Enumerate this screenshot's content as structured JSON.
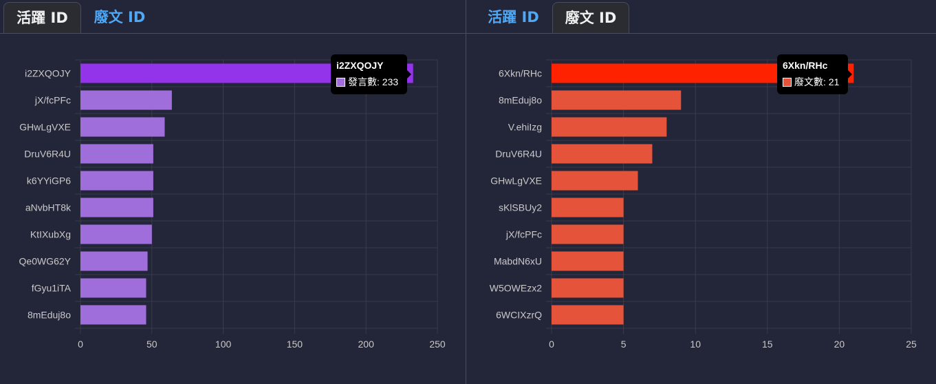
{
  "colors": {
    "background": "#232539",
    "tab_link": "#4fa8f5",
    "grid": "#3a3c4a"
  },
  "left": {
    "tabs": [
      {
        "label": "活躍 ID",
        "active": true
      },
      {
        "label": "廢文 ID",
        "active": false
      }
    ],
    "tooltip": {
      "title": "i2ZXQOJY",
      "series": "發言數",
      "value": "233"
    }
  },
  "right": {
    "tabs": [
      {
        "label": "活躍 ID",
        "active": false
      },
      {
        "label": "廢文 ID",
        "active": true
      }
    ],
    "tooltip": {
      "title": "6Xkn/RHc",
      "series": "廢文數",
      "value": "21"
    }
  },
  "chart_data": [
    {
      "type": "bar",
      "orientation": "horizontal",
      "categories": [
        "i2ZXQOJY",
        "jX/fcPFc",
        "GHwLgVXE",
        "DruV6R4U",
        "k6YYiGP6",
        "aNvbHT8k",
        "KtIXubXg",
        "Qe0WG62Y",
        "fGyu1iTA",
        "8mEduj8o"
      ],
      "series": [
        {
          "name": "發言數",
          "values": [
            233,
            64,
            59,
            51,
            51,
            51,
            50,
            47,
            46,
            46
          ]
        }
      ],
      "xlim": [
        0,
        250
      ],
      "xticks": [
        0,
        50,
        100,
        150,
        200,
        250
      ],
      "grid": true,
      "bar_color": "#a06edb",
      "highlight_color": "#9333ea",
      "highlight_index": 0
    },
    {
      "type": "bar",
      "orientation": "horizontal",
      "categories": [
        "6Xkn/RHc",
        "8mEduj8o",
        "V.ehiIzg",
        "DruV6R4U",
        "GHwLgVXE",
        "sKlSBUy2",
        "jX/fcPFc",
        "MabdN6xU",
        "W5OWEzx2",
        "6WCIXzrQ"
      ],
      "series": [
        {
          "name": "廢文數",
          "values": [
            21,
            9,
            8,
            7,
            6,
            5,
            5,
            5,
            5,
            5
          ]
        }
      ],
      "xlim": [
        0,
        25
      ],
      "xticks": [
        0,
        5,
        10,
        15,
        20,
        25
      ],
      "grid": true,
      "bar_color": "#e5533a",
      "highlight_color": "#ff2200",
      "highlight_index": 0
    }
  ]
}
